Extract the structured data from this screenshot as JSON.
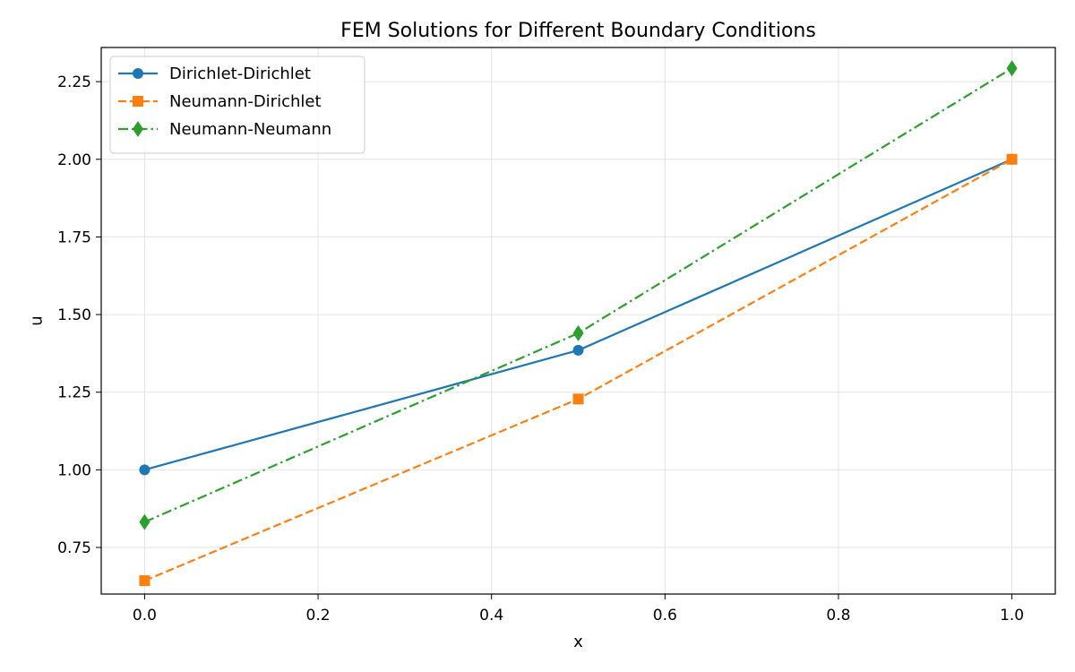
{
  "chart_data": {
    "type": "line",
    "title": "FEM Solutions for Different Boundary Conditions",
    "xlabel": "x",
    "ylabel": "u",
    "xlim": [
      -0.05,
      1.05
    ],
    "ylim": [
      0.6,
      2.36
    ],
    "xticks": [
      0.0,
      0.2,
      0.4,
      0.6,
      0.8,
      1.0
    ],
    "xtick_labels": [
      "0.0",
      "0.2",
      "0.4",
      "0.6",
      "0.8",
      "1.0"
    ],
    "yticks": [
      0.75,
      1.0,
      1.25,
      1.5,
      1.75,
      2.0,
      2.25
    ],
    "ytick_labels": [
      "0.75",
      "1.00",
      "1.25",
      "1.50",
      "1.75",
      "2.00",
      "2.25"
    ],
    "grid": true,
    "legend_position": "top-left",
    "series": [
      {
        "name": "Dirichlet-Dirichlet",
        "color": "#1f77b4",
        "line_style": "solid",
        "marker": "circle",
        "x": [
          0.0,
          0.5,
          1.0
        ],
        "y": [
          1.0,
          1.385,
          2.0
        ]
      },
      {
        "name": "Neumann-Dirichlet",
        "color": "#ff7f0e",
        "line_style": "dashed",
        "marker": "square",
        "x": [
          0.0,
          0.5,
          1.0
        ],
        "y": [
          0.643,
          1.228,
          2.0
        ]
      },
      {
        "name": "Neumann-Neumann",
        "color": "#2ca02c",
        "line_style": "dashdot",
        "marker": "diamond",
        "x": [
          0.0,
          0.5,
          1.0
        ],
        "y": [
          0.832,
          1.44,
          2.293
        ]
      }
    ]
  }
}
